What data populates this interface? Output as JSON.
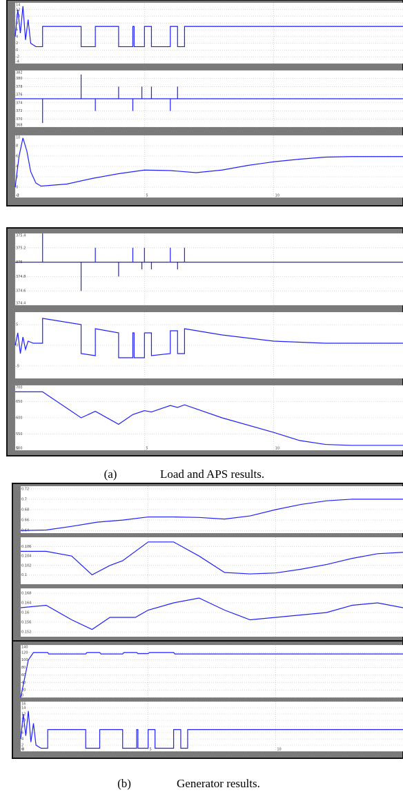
{
  "chart_data": [
    {
      "type": "line",
      "xlim": [
        0,
        15
      ],
      "xticks": [
        0,
        5,
        10
      ],
      "ylim": [
        -4,
        14
      ],
      "yticks": [
        -4,
        -2,
        0,
        2,
        4,
        6,
        8,
        10,
        12,
        14
      ],
      "grid": true,
      "color": "#1f1fff",
      "x": [
        0,
        0.1,
        0.2,
        0.3,
        0.4,
        0.5,
        0.6,
        0.8,
        1.06,
        1.06,
        2.55,
        2.55,
        3.1,
        3.1,
        4.0,
        4.0,
        4.55,
        4.55,
        4.6,
        4.6,
        5.0,
        5.0,
        5.27,
        5.27,
        6.0,
        6.0,
        6.28,
        6.28,
        6.55,
        6.55,
        15
      ],
      "values": [
        4,
        12,
        5,
        13,
        3,
        9,
        2,
        1,
        1,
        7,
        7,
        1,
        1,
        7,
        7,
        1,
        1,
        7,
        7,
        1,
        1,
        7,
        7,
        1,
        1,
        7,
        7,
        1,
        1,
        7,
        7
      ]
    },
    {
      "type": "line",
      "xlim": [
        0,
        15
      ],
      "xticks": [
        0,
        5,
        10
      ],
      "ylim": [
        368,
        382
      ],
      "yticks": [
        368,
        370,
        372,
        374,
        376,
        378,
        380,
        382
      ],
      "grid": true,
      "color": "#1f1fff",
      "x": [
        0,
        1.06,
        1.06,
        1.06,
        2.55,
        2.55,
        2.55,
        3.1,
        3.1,
        3.1,
        4.0,
        4.0,
        4.0,
        4.55,
        4.55,
        4.55,
        4.9,
        4.9,
        4.9,
        5.27,
        5.27,
        5.27,
        6.0,
        6.0,
        6.0,
        6.28,
        6.28,
        6.28,
        15
      ],
      "values": [
        375,
        375,
        369,
        375,
        375,
        381,
        375,
        375,
        372,
        375,
        375,
        378,
        375,
        375,
        372,
        375,
        375,
        378,
        375,
        375,
        378,
        375,
        375,
        372,
        375,
        375,
        378,
        375,
        375
      ]
    },
    {
      "type": "line",
      "xlim": [
        0,
        15
      ],
      "xticks": [
        0,
        5,
        10
      ],
      "ylim": [
        -2,
        10
      ],
      "yticks": [
        -2,
        0,
        2,
        4,
        6,
        8,
        10
      ],
      "grid": true,
      "color": "#1f1fff",
      "x": [
        0,
        0.15,
        0.3,
        0.45,
        0.6,
        0.8,
        1.0,
        2,
        3,
        4,
        5,
        6,
        7,
        8,
        9,
        10,
        11,
        12,
        13,
        14,
        15
      ],
      "values": [
        0,
        6,
        9.5,
        7,
        3,
        0.8,
        0.2,
        0.6,
        1.7,
        2.6,
        3.3,
        3.2,
        2.8,
        3.3,
        4.2,
        4.9,
        5.4,
        5.8,
        5.9,
        5.9,
        5.9
      ]
    },
    {
      "type": "line",
      "xlim": [
        0,
        15
      ],
      "xticks": [
        0,
        5,
        10
      ],
      "ylim": [
        374.4,
        375.4
      ],
      "yticks": [
        374.4,
        374.6,
        374.8,
        375,
        375.2,
        375.4
      ],
      "grid": true,
      "color": "#1f1fff",
      "x": [
        0,
        1.06,
        1.06,
        1.06,
        2.55,
        2.55,
        2.55,
        3.1,
        3.1,
        3.1,
        4.0,
        4.0,
        4.0,
        4.55,
        4.55,
        4.55,
        4.9,
        4.9,
        4.9,
        5.0,
        5.0,
        5.0,
        5.27,
        5.27,
        5.27,
        6.0,
        6.0,
        6.0,
        6.28,
        6.28,
        6.28,
        6.55,
        6.55,
        6.55,
        15
      ],
      "values": [
        375,
        375,
        375.4,
        375,
        375,
        374.6,
        375,
        375,
        375.2,
        375,
        375,
        374.8,
        375,
        375,
        375.2,
        375,
        375,
        374.9,
        375,
        375,
        375.2,
        375,
        375,
        374.9,
        375,
        375,
        375.2,
        375,
        375,
        374.9,
        375,
        375,
        375.2,
        375,
        375
      ]
    },
    {
      "type": "line",
      "xlim": [
        0,
        15
      ],
      "xticks": [
        0,
        5,
        10
      ],
      "ylim": [
        -8,
        8
      ],
      "yticks": [
        -5,
        0,
        5
      ],
      "grid": true,
      "color": "#1f1fff",
      "x": [
        0,
        0.1,
        0.2,
        0.3,
        0.4,
        0.5,
        0.7,
        1.06,
        1.06,
        2.55,
        2.55,
        3.1,
        3.1,
        4.0,
        4.0,
        4.55,
        4.55,
        4.6,
        4.6,
        5.0,
        5.0,
        5.27,
        5.27,
        6.0,
        6.0,
        6.28,
        6.28,
        6.55,
        6.55,
        8,
        10,
        12,
        15
      ],
      "values": [
        0,
        3,
        -2,
        2,
        -1,
        1,
        0.5,
        0.5,
        6.5,
        5,
        -2,
        -2.5,
        4,
        3,
        -3,
        -3,
        3,
        3,
        -3,
        -3,
        3,
        3,
        -2.5,
        -2,
        3.5,
        3.5,
        -2,
        -2,
        4,
        2.5,
        1,
        0.5,
        0.5
      ]
    },
    {
      "type": "line",
      "xlim": [
        0,
        15
      ],
      "xticks": [
        0,
        5,
        10
      ],
      "ylim": [
        500,
        700
      ],
      "yticks": [
        500,
        550,
        600,
        650,
        700
      ],
      "grid": true,
      "color": "#1f1fff",
      "x": [
        0,
        1.06,
        2.55,
        3.1,
        4.0,
        4.55,
        5.0,
        5.27,
        6.0,
        6.28,
        6.55,
        8,
        10,
        11,
        12,
        13,
        15
      ],
      "values": [
        680,
        680,
        600,
        620,
        580,
        610,
        622,
        618,
        638,
        632,
        640,
        600,
        555,
        530,
        518,
        515,
        515
      ]
    },
    {
      "type": "line",
      "xlim": [
        0,
        15
      ],
      "xticks": [
        0,
        5,
        10
      ],
      "ylim": [
        0.635,
        0.725
      ],
      "yticks": [
        0.64,
        0.66,
        0.68,
        0.7,
        0.72
      ],
      "grid": true,
      "color": "#1f1fff",
      "x": [
        0,
        1,
        2,
        3,
        4,
        5,
        6,
        7,
        8,
        9,
        10,
        11,
        12,
        13,
        14,
        15
      ],
      "values": [
        0.64,
        0.641,
        0.648,
        0.656,
        0.66,
        0.666,
        0.666,
        0.665,
        0.662,
        0.668,
        0.68,
        0.69,
        0.697,
        0.7,
        0.7,
        0.7
      ]
    },
    {
      "type": "line",
      "xlim": [
        0,
        15
      ],
      "xticks": [
        0,
        5,
        10
      ],
      "ylim": [
        0.098,
        0.108
      ],
      "yticks": [
        0.1,
        0.102,
        0.104,
        0.106
      ],
      "grid": true,
      "color": "#1f1fff",
      "x": [
        0,
        1,
        2,
        2.8,
        3.5,
        4,
        5,
        5.5,
        6,
        7,
        8,
        9,
        10,
        11,
        12,
        13,
        14,
        15
      ],
      "values": [
        0.105,
        0.105,
        0.104,
        0.1,
        0.102,
        0.103,
        0.107,
        0.107,
        0.107,
        0.104,
        0.1005,
        0.1002,
        0.1004,
        0.1012,
        0.1022,
        0.1035,
        0.1045,
        0.1048
      ]
    },
    {
      "type": "line",
      "xlim": [
        0,
        15
      ],
      "xticks": [
        0,
        5,
        10
      ],
      "ylim": [
        0.15,
        0.17
      ],
      "yticks": [
        0.152,
        0.156,
        0.16,
        0.164,
        0.168
      ],
      "grid": true,
      "color": "#1f1fff",
      "x": [
        0,
        1,
        2,
        2.8,
        3.5,
        4.5,
        5,
        6,
        7,
        8,
        9,
        10,
        11,
        12,
        13,
        14,
        15
      ],
      "values": [
        0.162,
        0.163,
        0.157,
        0.153,
        0.158,
        0.158,
        0.161,
        0.164,
        0.166,
        0.161,
        0.157,
        0.158,
        0.159,
        0.16,
        0.163,
        0.164,
        0.162
      ]
    },
    {
      "type": "line",
      "xlim": [
        0,
        15
      ],
      "xticks": [
        0,
        5,
        10
      ],
      "ylim": [
        0,
        140
      ],
      "yticks": [
        0,
        20,
        40,
        60,
        80,
        100,
        120,
        140
      ],
      "grid": true,
      "color": "#1f1fff",
      "x": [
        0,
        0.3,
        0.5,
        1.06,
        1.1,
        1.3,
        2.55,
        2.6,
        2.8,
        3.1,
        3.15,
        3.3,
        4.0,
        4.05,
        4.2,
        4.55,
        4.6,
        5.0,
        5.05,
        5.2,
        6.0,
        6.05,
        6.2,
        6.55,
        6.6,
        15
      ],
      "values": [
        0,
        100,
        120,
        120,
        116,
        116,
        116,
        120,
        120,
        120,
        116,
        116,
        116,
        120,
        120,
        120,
        117,
        117,
        120,
        120,
        120,
        116,
        116,
        116,
        116,
        116
      ]
    },
    {
      "type": "line",
      "xlim": [
        0,
        15
      ],
      "xticks": [
        0,
        5,
        10
      ],
      "ylim": [
        0,
        16
      ],
      "yticks": [
        0,
        2,
        4,
        6,
        8,
        10,
        12,
        14,
        16
      ],
      "grid": true,
      "color": "#1f1fff",
      "x": [
        0,
        0.1,
        0.2,
        0.3,
        0.4,
        0.5,
        0.6,
        0.8,
        1.06,
        1.06,
        2.55,
        2.55,
        3.1,
        3.1,
        4.0,
        4.0,
        4.55,
        4.55,
        4.6,
        4.6,
        5.0,
        5.0,
        5.27,
        5.27,
        6.0,
        6.0,
        6.28,
        6.28,
        6.55,
        6.55,
        15
      ],
      "values": [
        4,
        12,
        5,
        13,
        3,
        9,
        2,
        1,
        1,
        7,
        7,
        1,
        1,
        7,
        7,
        1,
        1,
        7,
        7,
        1,
        1,
        7,
        7,
        1,
        1,
        7,
        7,
        1,
        1,
        7,
        7
      ]
    }
  ],
  "captions": [
    {
      "label": "(a)",
      "text": "Load and APS results."
    },
    {
      "label": "(b)",
      "text": "Generator results."
    }
  ]
}
